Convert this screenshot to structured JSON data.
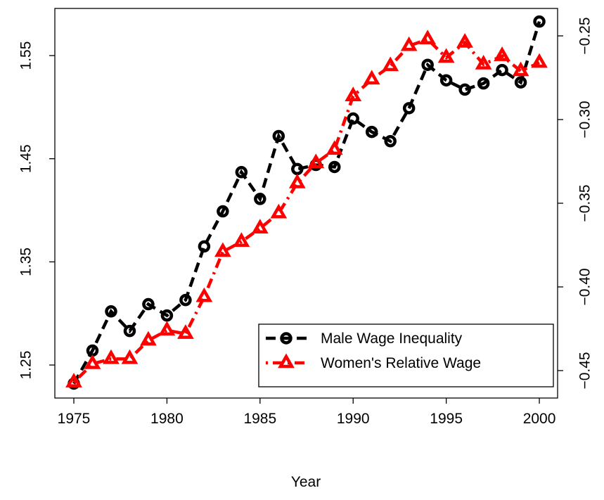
{
  "chart_data": {
    "type": "line",
    "x_label": "Year",
    "x": [
      1975,
      1976,
      1977,
      1978,
      1979,
      1980,
      1981,
      1982,
      1983,
      1984,
      1985,
      1986,
      1987,
      1988,
      1989,
      1990,
      1991,
      1992,
      1993,
      1994,
      1995,
      1996,
      1997,
      1998,
      1999,
      2000
    ],
    "series": [
      {
        "name": "Male Wage Inequality",
        "color": "#000000",
        "marker": "circle",
        "dash": "dashed",
        "values": [
          1.232,
          1.264,
          1.302,
          1.283,
          1.309,
          1.298,
          1.313,
          1.365,
          1.399,
          1.437,
          1.411,
          1.472,
          1.44,
          1.444,
          1.442,
          1.489,
          1.476,
          1.467,
          1.499,
          1.541,
          1.526,
          1.517,
          1.523,
          1.536,
          1.524,
          1.583
        ]
      },
      {
        "name": "Women's Relative Wage",
        "color": "#ff0000",
        "marker": "triangle",
        "dash": "dotdash",
        "axis": "y2",
        "values": [
          -0.457,
          -0.446,
          -0.443,
          -0.443,
          -0.432,
          -0.426,
          -0.428,
          -0.406,
          -0.379,
          -0.373,
          -0.365,
          -0.356,
          -0.338,
          -0.326,
          -0.318,
          -0.286,
          -0.276,
          -0.268,
          -0.256,
          -0.252,
          -0.263,
          -0.254,
          -0.267,
          -0.262,
          -0.271,
          -0.266
        ]
      }
    ],
    "xlim": [
      1973.98,
      2000.98
    ],
    "xticks": [
      1975,
      1980,
      1985,
      1990,
      1995,
      2000
    ],
    "ylim": [
      1.218,
      1.5957
    ],
    "yticks": [
      1.25,
      1.35,
      1.45,
      1.55
    ],
    "y2lim": [
      -0.4664,
      -0.2336
    ],
    "y2ticks": [
      {
        "value": -0.45,
        "label": "−0.45"
      },
      {
        "value": -0.4,
        "label": "−0.40"
      },
      {
        "value": -0.35,
        "label": "−0.35"
      },
      {
        "value": -0.3,
        "label": "−0.30"
      },
      {
        "value": -0.25,
        "label": "−0.25"
      }
    ],
    "legend": "bottom-right"
  }
}
